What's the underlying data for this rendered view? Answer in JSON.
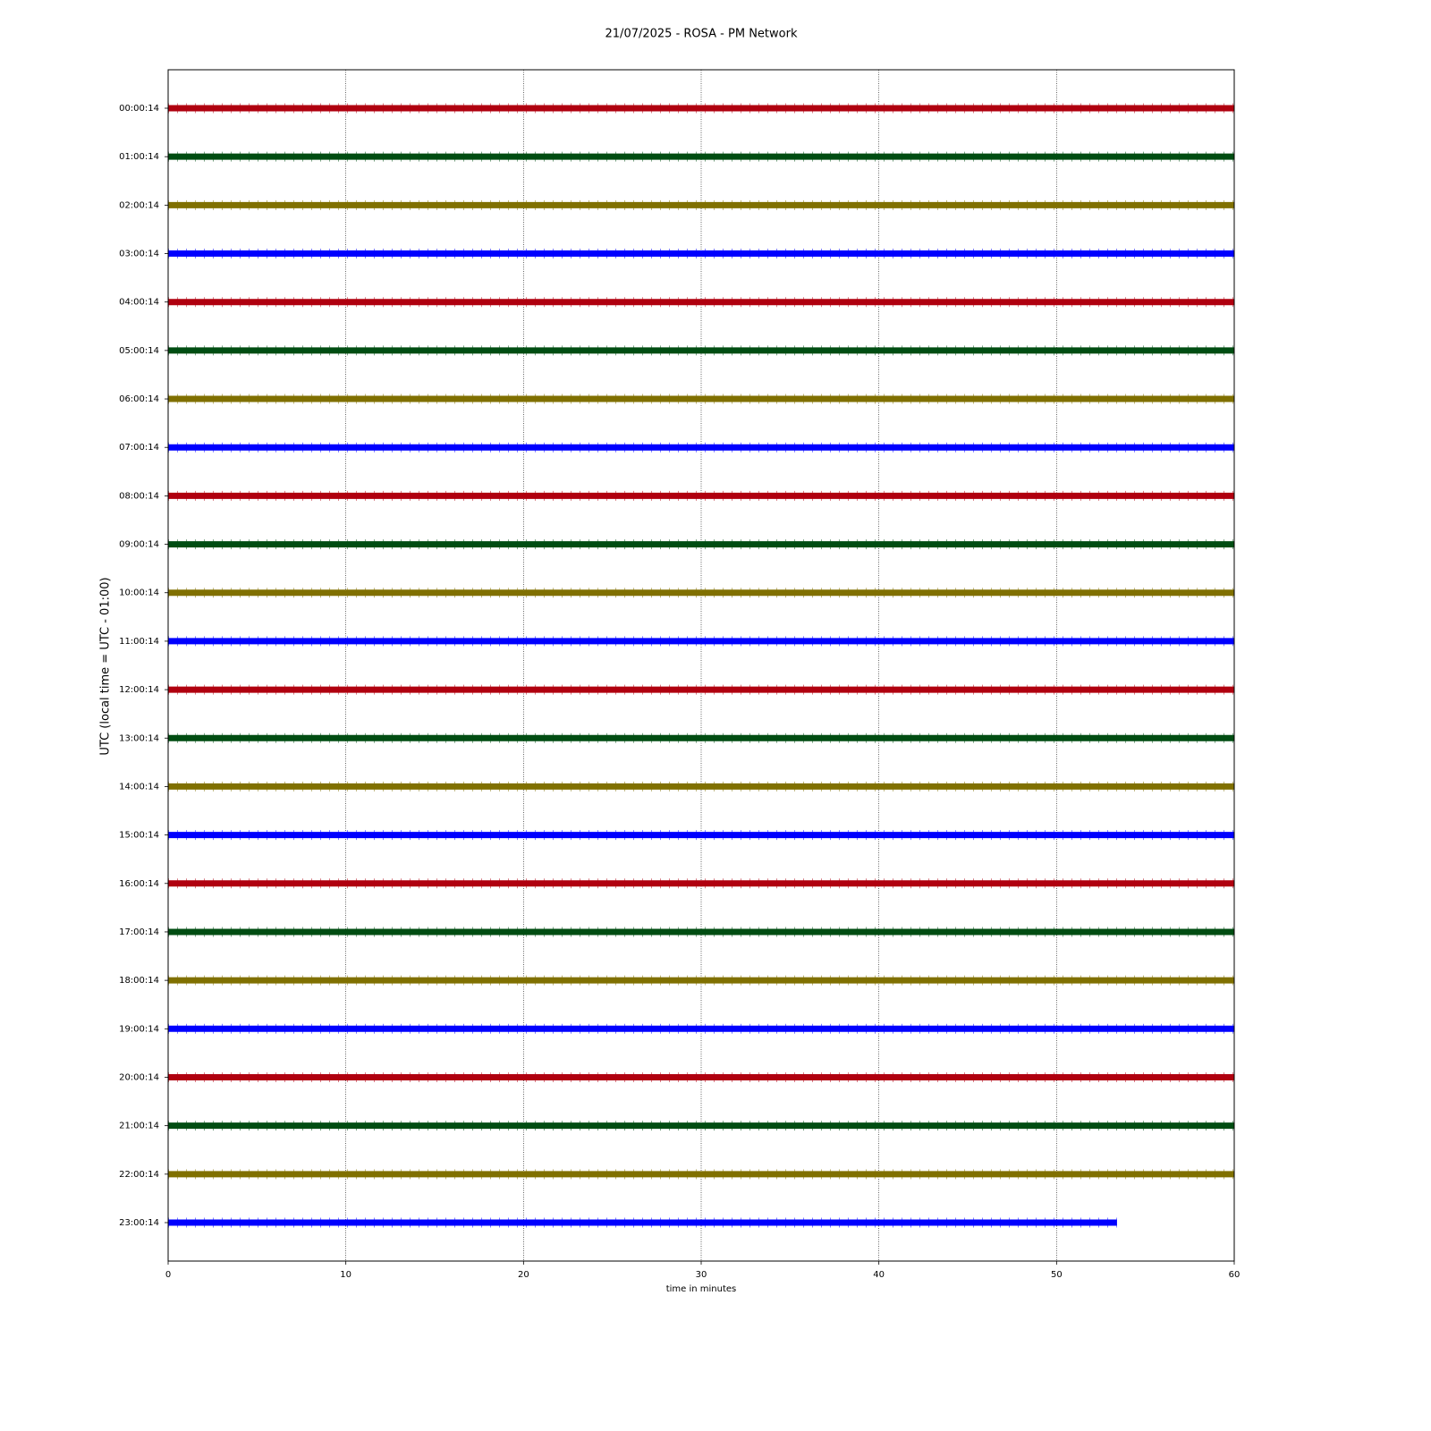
{
  "chart_data": {
    "type": "helicorder",
    "title": "21/07/2025 - ROSA - PM Network",
    "xlabel": "time in minutes",
    "ylabel": "UTC (local time = UTC - 01:00)",
    "xlim": [
      0,
      60
    ],
    "xticks": [
      0,
      10,
      20,
      30,
      40,
      50,
      60
    ],
    "grid": true,
    "series": [
      {
        "name": "00:00:14",
        "color": "#b0000f",
        "x": [
          0,
          60
        ]
      },
      {
        "name": "01:00:14",
        "color": "#004d12",
        "x": [
          0,
          60
        ]
      },
      {
        "name": "02:00:14",
        "color": "#807000",
        "x": [
          0,
          60
        ]
      },
      {
        "name": "03:00:14",
        "color": "#0000ff",
        "x": [
          0,
          60
        ]
      },
      {
        "name": "04:00:14",
        "color": "#b0000f",
        "x": [
          0,
          60
        ]
      },
      {
        "name": "05:00:14",
        "color": "#004d12",
        "x": [
          0,
          60
        ]
      },
      {
        "name": "06:00:14",
        "color": "#807000",
        "x": [
          0,
          60
        ]
      },
      {
        "name": "07:00:14",
        "color": "#0000ff",
        "x": [
          0,
          60
        ]
      },
      {
        "name": "08:00:14",
        "color": "#b0000f",
        "x": [
          0,
          60
        ]
      },
      {
        "name": "09:00:14",
        "color": "#004d12",
        "x": [
          0,
          60
        ]
      },
      {
        "name": "10:00:14",
        "color": "#807000",
        "x": [
          0,
          60
        ]
      },
      {
        "name": "11:00:14",
        "color": "#0000ff",
        "x": [
          0,
          60
        ]
      },
      {
        "name": "12:00:14",
        "color": "#b0000f",
        "x": [
          0,
          60
        ]
      },
      {
        "name": "13:00:14",
        "color": "#004d12",
        "x": [
          0,
          60
        ]
      },
      {
        "name": "14:00:14",
        "color": "#807000",
        "x": [
          0,
          60
        ]
      },
      {
        "name": "15:00:14",
        "color": "#0000ff",
        "x": [
          0,
          60
        ]
      },
      {
        "name": "16:00:14",
        "color": "#b0000f",
        "x": [
          0,
          60
        ]
      },
      {
        "name": "17:00:14",
        "color": "#004d12",
        "x": [
          0,
          60
        ]
      },
      {
        "name": "18:00:14",
        "color": "#807000",
        "x": [
          0,
          60
        ]
      },
      {
        "name": "19:00:14",
        "color": "#0000ff",
        "x": [
          0,
          60
        ]
      },
      {
        "name": "20:00:14",
        "color": "#b0000f",
        "x": [
          0,
          60
        ]
      },
      {
        "name": "21:00:14",
        "color": "#004d12",
        "x": [
          0,
          60
        ]
      },
      {
        "name": "22:00:14",
        "color": "#807000",
        "x": [
          0,
          60
        ]
      },
      {
        "name": "23:00:14",
        "color": "#0000ff",
        "x": [
          0,
          53.4
        ]
      }
    ]
  }
}
